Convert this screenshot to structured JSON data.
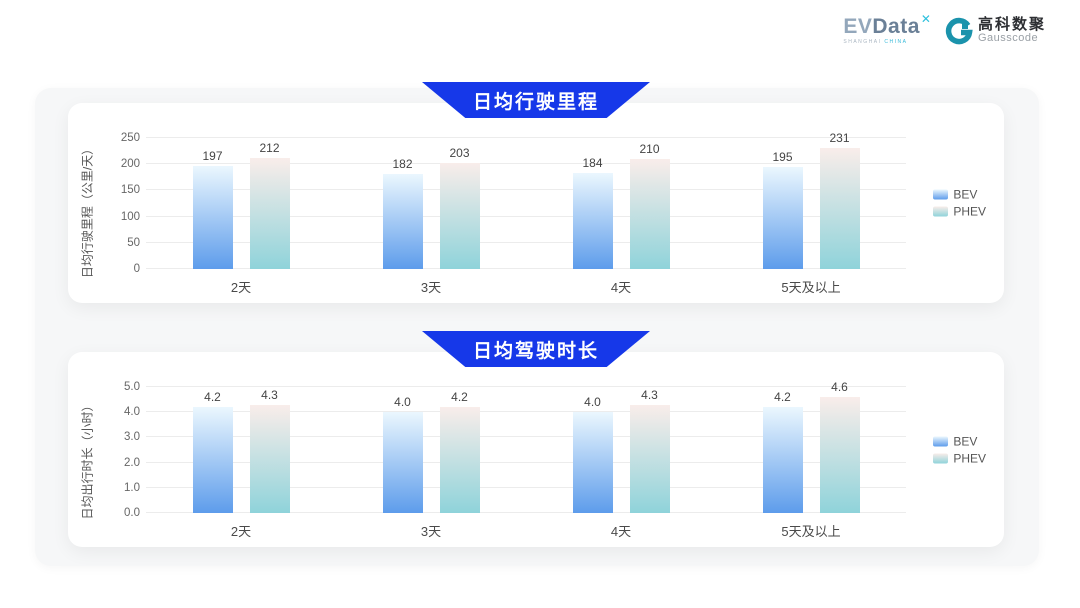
{
  "header": {
    "evdata": {
      "text_ev": "EV",
      "text_data": "Data",
      "sup": "✕",
      "sub_left": "SHANGHAI",
      "sub_right": "CHINA"
    },
    "gausscode": {
      "cn": "高科数聚",
      "en": "Gausscode"
    }
  },
  "colors": {
    "banner_blue": "#1638e9",
    "panel_bg": "#f6f7f8",
    "grid": "#ececec",
    "bev_gradient": [
      "#ebf7fe",
      "#5d9ceb"
    ],
    "phev_gradient": [
      "#f9edea",
      "#8fd3da"
    ],
    "gauss_teal": "#1b93ac",
    "evdata_cyan": "#2ec0dd"
  },
  "chart_data": [
    {
      "type": "bar",
      "title": "日均行驶里程",
      "categories": [
        "2天",
        "3天",
        "4天",
        "5天及以上"
      ],
      "series": [
        {
          "name": "BEV",
          "values": [
            197,
            182,
            184,
            195
          ],
          "labels": [
            "197",
            "182",
            "184",
            "195"
          ]
        },
        {
          "name": "PHEV",
          "values": [
            212,
            203,
            210,
            231
          ],
          "labels": [
            "212",
            "203",
            "210",
            "231"
          ]
        }
      ],
      "xlabel": "",
      "ylabel": "日均行驶里程（公里/天）",
      "ylim": [
        0,
        250
      ],
      "yticks": [
        "0",
        "50",
        "100",
        "150",
        "200",
        "250"
      ],
      "grid": true,
      "legend_position": "right"
    },
    {
      "type": "bar",
      "title": "日均驾驶时长",
      "categories": [
        "2天",
        "3天",
        "4天",
        "5天及以上"
      ],
      "series": [
        {
          "name": "BEV",
          "values": [
            4.2,
            4.0,
            4.0,
            4.2
          ],
          "labels": [
            "4.2",
            "4.0",
            "4.0",
            "4.2"
          ]
        },
        {
          "name": "PHEV",
          "values": [
            4.3,
            4.2,
            4.3,
            4.6
          ],
          "labels": [
            "4.3",
            "4.2",
            "4.3",
            "4.6"
          ]
        }
      ],
      "xlabel": "",
      "ylabel": "日均出行时长（小时）",
      "ylim": [
        0,
        5
      ],
      "yticks": [
        "0.0",
        "1.0",
        "2.0",
        "3.0",
        "4.0",
        "5.0"
      ],
      "grid": true,
      "legend_position": "right"
    }
  ]
}
